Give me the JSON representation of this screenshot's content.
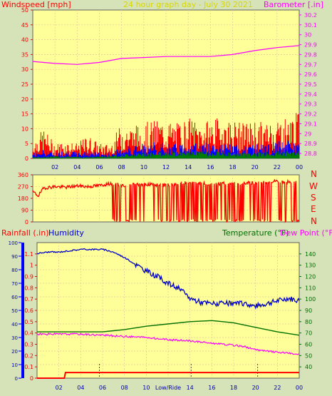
{
  "header": {
    "wind_label": "Windspeed [mph]",
    "title": "24 hour graph day - July 30 2021",
    "baro_label": "Barometer [.in]",
    "rain_label": "Rainfall (.in)",
    "humidity_label": "Humidity",
    "temp_label": "Temperature (°F)",
    "dew_label": "Dew Point (°F)",
    "midline_label": "Low/Ride",
    "compass": [
      "N",
      "W",
      "S",
      "E",
      "N"
    ]
  },
  "colors": {
    "background": "#d6e2b8",
    "plot_bg": "#ffff99",
    "grid": "#e0c8a0",
    "wind": "#ff0000",
    "gust": "#0000ff",
    "avg_wind": "#008000",
    "barometer": "#ff00ff",
    "title": "#d8d800",
    "rain": "#ff0000",
    "humidity": "#0000cc",
    "temperature": "#007000",
    "dewpoint": "#ff00ff",
    "left_axis_text": "#ff0000",
    "left_axis_bar": "#0000ff"
  },
  "chart_data": [
    {
      "type": "line",
      "name": "wind-barometer",
      "x_ticks": [
        "02",
        "04",
        "06",
        "08",
        "10",
        "12",
        "14",
        "16",
        "18",
        "20",
        "22",
        "00"
      ],
      "y_left": {
        "label": "Windspeed [mph]",
        "ylim": [
          0,
          50
        ],
        "ticks": [
          "0",
          "5",
          "10",
          "15",
          "20",
          "25",
          "30",
          "35",
          "40",
          "45",
          "50"
        ]
      },
      "y_right": {
        "label": "Barometer [.in]",
        "ylim": [
          28.75,
          30.25
        ],
        "ticks": [
          "28.8",
          "28.9",
          "29",
          "29.1",
          "29.2",
          "29.3",
          "29.4",
          "29.5",
          "29.6",
          "29.7",
          "29.8",
          "29.9",
          "30",
          "30.1",
          "30.2"
        ]
      },
      "series": [
        {
          "name": "Barometer",
          "axis": "right",
          "x": [
            0,
            2,
            4,
            6,
            8,
            10,
            12,
            14,
            16,
            18,
            20,
            22,
            24
          ],
          "values": [
            29.73,
            29.71,
            29.7,
            29.72,
            29.76,
            29.77,
            29.78,
            29.78,
            29.78,
            29.8,
            29.84,
            29.87,
            29.89
          ]
        },
        {
          "name": "Windspeed",
          "axis": "left",
          "x": [
            0,
            1,
            2,
            3,
            4,
            5,
            6,
            7,
            8,
            9,
            10,
            11,
            12,
            13,
            14,
            15,
            16,
            17,
            18,
            19,
            20,
            21,
            22,
            23,
            24
          ],
          "values": [
            6,
            10,
            5,
            6,
            5,
            8,
            5,
            5,
            12,
            11,
            12,
            13,
            13,
            12,
            14,
            12,
            13,
            14,
            13,
            12,
            13,
            12,
            14,
            14,
            16
          ]
        },
        {
          "name": "Gust",
          "axis": "left",
          "x": [
            0,
            1,
            2,
            3,
            4,
            5,
            6,
            7,
            8,
            9,
            10,
            11,
            12,
            13,
            14,
            15,
            16,
            17,
            18,
            19,
            20,
            21,
            22,
            23,
            24
          ],
          "values": [
            2,
            3,
            2,
            3,
            2,
            3,
            2,
            2,
            4,
            5,
            5,
            6,
            5,
            5,
            6,
            5,
            6,
            5,
            5,
            4,
            5,
            5,
            6,
            6,
            6
          ]
        },
        {
          "name": "Average wind",
          "axis": "left",
          "x": [
            0,
            2,
            4,
            6,
            8,
            10,
            12,
            14,
            16,
            18,
            20,
            22,
            24
          ],
          "values": [
            0.5,
            0.8,
            0.6,
            0.7,
            1.5,
            2,
            2.5,
            2.5,
            2.5,
            2,
            2,
            2.5,
            2.5
          ]
        }
      ]
    },
    {
      "type": "line",
      "name": "wind-direction",
      "x_ticks": [
        "02",
        "04",
        "06",
        "08",
        "10",
        "12",
        "14",
        "16",
        "18",
        "20",
        "22",
        "00"
      ],
      "y_left": {
        "ylim": [
          0,
          360
        ],
        "ticks": [
          "0",
          "90",
          "180",
          "270",
          "360"
        ]
      },
      "y_right": {
        "ticks": [
          "N",
          "W",
          "S",
          "E",
          "N"
        ]
      },
      "series": [
        {
          "name": "Wind direction",
          "x": [
            0,
            0.5,
            1,
            2,
            3,
            4,
            5,
            6,
            6.8,
            7.2,
            8,
            10,
            12,
            14,
            16,
            18,
            20,
            22,
            24
          ],
          "values": [
            230,
            200,
            260,
            270,
            265,
            275,
            270,
            278,
            290,
            295,
            280,
            290,
            280,
            300,
            290,
            295,
            300,
            310,
            300
          ]
        }
      ]
    },
    {
      "type": "line",
      "name": "temperature-humidity-rain",
      "x_ticks": [
        "02",
        "04",
        "06",
        "08",
        "10",
        "12",
        "14",
        "16",
        "18",
        "20",
        "22",
        "00"
      ],
      "midline_label": "Low/Ride",
      "y_left_rain": {
        "label": "Rainfall (.in)",
        "ylim": [
          0,
          1.2
        ],
        "ticks": [
          "0",
          "0.1",
          "0.2",
          "0.3",
          "0.4",
          "0.5",
          "0.6",
          "0.7",
          "0.8",
          "0.9",
          "1",
          "1.1"
        ]
      },
      "y_left_humidity": {
        "label": "Humidity",
        "ylim": [
          0,
          100
        ],
        "ticks": [
          "0",
          "10",
          "20",
          "30",
          "40",
          "50",
          "60",
          "70",
          "80",
          "90",
          "100"
        ]
      },
      "y_right": {
        "label": "Temperature (°F)",
        "ylim": [
          30,
          150
        ],
        "ticks": [
          "40",
          "50",
          "60",
          "70",
          "80",
          "90",
          "100",
          "110",
          "120",
          "130",
          "140"
        ]
      },
      "series": [
        {
          "name": "Humidity",
          "axis": "humidity",
          "x": [
            0,
            1,
            2,
            3,
            4,
            5,
            6,
            7,
            8,
            9,
            10,
            11,
            12,
            13,
            14,
            15,
            16,
            17,
            18,
            19,
            20,
            21,
            22,
            23,
            24
          ],
          "values": [
            92,
            93,
            93,
            94,
            95,
            95,
            95,
            93,
            89,
            84,
            79,
            75,
            70,
            66,
            59,
            56,
            55,
            55,
            55,
            55,
            53,
            55,
            57,
            59,
            57
          ]
        },
        {
          "name": "Temperature",
          "axis": "temp",
          "x": [
            0,
            2,
            4,
            6,
            7,
            8,
            10,
            12,
            14,
            16,
            17,
            18,
            20,
            22,
            24
          ],
          "values": [
            71,
            71,
            71,
            71,
            72,
            73,
            76,
            78,
            80,
            81,
            80,
            79,
            75,
            71,
            68
          ]
        },
        {
          "name": "Dew Point",
          "axis": "temp",
          "x": [
            0,
            2,
            4,
            6,
            8,
            10,
            12,
            14,
            16,
            18,
            19,
            20,
            22,
            24
          ],
          "values": [
            69,
            69,
            69,
            68,
            67,
            66,
            64,
            63,
            61,
            59,
            58,
            55,
            53,
            51
          ]
        },
        {
          "name": "Rainfall",
          "axis": "rain",
          "x": [
            0,
            2.5,
            2.6,
            24
          ],
          "values": [
            0,
            0,
            0.05,
            0.05
          ]
        }
      ]
    }
  ]
}
